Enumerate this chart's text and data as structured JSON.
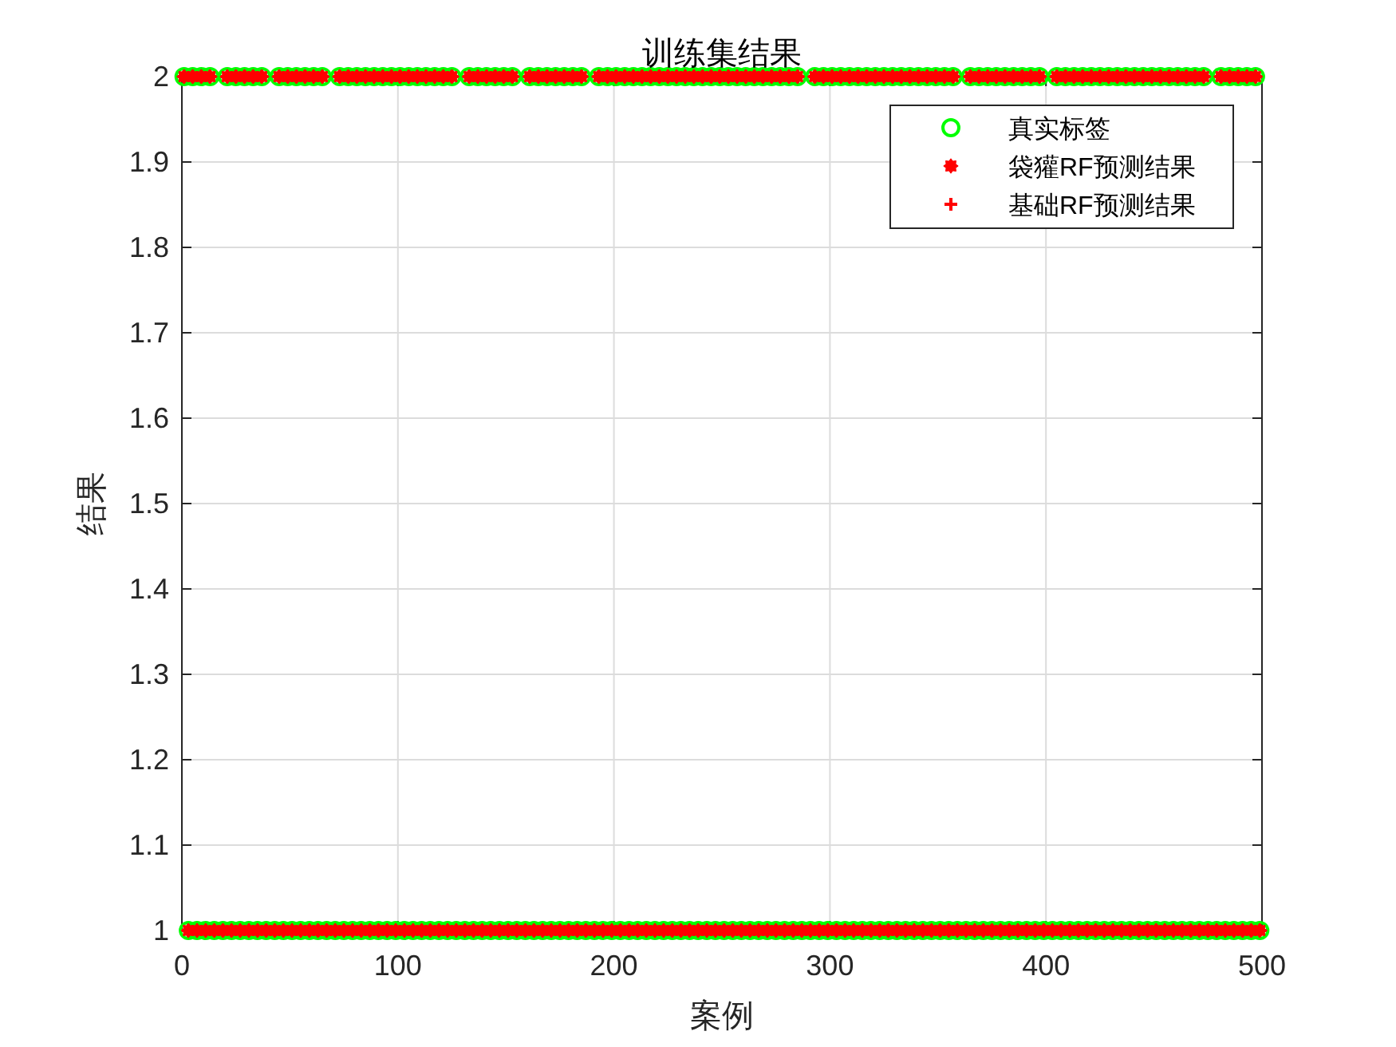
{
  "chart_data": {
    "type": "scatter",
    "title": "训练集结果",
    "xlabel": "案例",
    "ylabel": "结果",
    "xlim": [
      0,
      500
    ],
    "xticks": [
      0,
      100,
      200,
      300,
      400,
      500
    ],
    "ylim": [
      1,
      2
    ],
    "yticks": [
      1,
      1.1,
      1.2,
      1.3,
      1.4,
      1.5,
      1.6,
      1.7,
      1.8,
      1.9,
      2
    ],
    "grid": true,
    "legend": "top right",
    "x": [
      1,
      3,
      5,
      7,
      9,
      11,
      13,
      15,
      19,
      21,
      23,
      25,
      27,
      29,
      31,
      33,
      35,
      37,
      39,
      43,
      45,
      47,
      49,
      51,
      53,
      55,
      57,
      59,
      61,
      63,
      65,
      67,
      71,
      73,
      75,
      77,
      79,
      81,
      83,
      85,
      87,
      89,
      91,
      93,
      95,
      97,
      99,
      101,
      103,
      105,
      107,
      109,
      111,
      113,
      115,
      117,
      119,
      121,
      123,
      125,
      127,
      131,
      133,
      135,
      137,
      139,
      141,
      143,
      145,
      147,
      149,
      151,
      153,
      155,
      159,
      161,
      163,
      165,
      167,
      169,
      171,
      173,
      175,
      177,
      179,
      181,
      183,
      185,
      187,
      191,
      193,
      195,
      197,
      199,
      201,
      203,
      205,
      207,
      209,
      211,
      213,
      215,
      217,
      219,
      221,
      223,
      225,
      227,
      229,
      231,
      233,
      235,
      237,
      239,
      241,
      243,
      245,
      247,
      249,
      251,
      253,
      255,
      257,
      259,
      261,
      263,
      265,
      267,
      269,
      271,
      273,
      275,
      277,
      279,
      281,
      283,
      285,
      287,
      291,
      293,
      295,
      297,
      299,
      301,
      303,
      305,
      307,
      309,
      311,
      313,
      315,
      317,
      319,
      321,
      323,
      325,
      327,
      329,
      331,
      333,
      335,
      337,
      339,
      341,
      343,
      345,
      347,
      349,
      351,
      353,
      355,
      357,
      359,
      363,
      365,
      367,
      369,
      371,
      373,
      375,
      377,
      379,
      381,
      383,
      385,
      387,
      389,
      391,
      393,
      395,
      397,
      399,
      403,
      405,
      407,
      409,
      411,
      413,
      415,
      417,
      419,
      421,
      423,
      425,
      427,
      429,
      431,
      433,
      435,
      437,
      439,
      441,
      443,
      445,
      447,
      449,
      451,
      453,
      455,
      457,
      459,
      461,
      463,
      465,
      467,
      469,
      471,
      473,
      475,
      479,
      481,
      483,
      485,
      487,
      489,
      491,
      493,
      495,
      497,
      499
    ],
    "series": [
      {
        "name": "真实标签",
        "color": "#00ff00",
        "marker": "circle",
        "values": [
          2,
          1,
          2,
          1,
          2,
          1,
          2,
          1,
          1,
          2,
          1,
          2,
          1,
          2,
          1,
          2,
          1,
          2,
          1,
          1,
          2,
          1,
          2,
          1,
          2,
          1,
          2,
          1,
          2,
          1,
          2,
          1,
          1,
          2,
          1,
          2,
          1,
          2,
          1,
          2,
          1,
          2,
          1,
          2,
          1,
          2,
          1,
          2,
          1,
          2,
          1,
          2,
          1,
          2,
          1,
          2,
          1,
          2,
          1,
          2,
          1,
          1,
          2,
          1,
          2,
          1,
          2,
          1,
          2,
          1,
          2,
          1,
          2,
          1,
          1,
          2,
          1,
          2,
          1,
          2,
          1,
          2,
          1,
          2,
          1,
          2,
          1,
          2,
          1,
          1,
          2,
          1,
          2,
          1,
          2,
          1,
          2,
          1,
          2,
          1,
          2,
          1,
          2,
          1,
          2,
          1,
          2,
          1,
          2,
          1,
          2,
          1,
          2,
          1,
          2,
          1,
          2,
          1,
          2,
          1,
          2,
          1,
          2,
          1,
          2,
          1,
          2,
          1,
          2,
          1,
          2,
          1,
          2,
          1,
          2,
          1,
          2,
          1,
          1,
          2,
          1,
          2,
          1,
          2,
          1,
          2,
          1,
          2,
          1,
          2,
          1,
          2,
          1,
          2,
          1,
          2,
          1,
          2,
          1,
          2,
          1,
          2,
          1,
          2,
          1,
          2,
          1,
          2,
          1,
          2,
          1,
          2,
          1,
          1,
          2,
          1,
          2,
          1,
          2,
          1,
          2,
          1,
          2,
          1,
          2,
          1,
          2,
          1,
          2,
          1,
          2,
          1,
          1,
          2,
          1,
          2,
          1,
          2,
          1,
          2,
          1,
          2,
          1,
          2,
          1,
          2,
          1,
          2,
          1,
          2,
          1,
          2,
          1,
          2,
          1,
          2,
          1,
          2,
          1,
          2,
          1,
          2,
          1,
          2,
          1,
          2,
          1,
          2,
          1,
          1,
          2,
          1,
          2,
          1,
          2,
          1,
          2,
          1,
          2,
          1
        ]
      },
      {
        "name": "袋獾RF预测结果",
        "color": "#ff0000",
        "marker": "star",
        "values": [
          2,
          1,
          2,
          1,
          2,
          1,
          2,
          1,
          1,
          2,
          1,
          2,
          1,
          2,
          1,
          2,
          1,
          2,
          1,
          1,
          2,
          1,
          2,
          1,
          2,
          1,
          2,
          1,
          2,
          1,
          2,
          1,
          1,
          2,
          1,
          2,
          1,
          2,
          1,
          2,
          1,
          2,
          1,
          2,
          1,
          2,
          1,
          2,
          1,
          2,
          1,
          2,
          1,
          2,
          1,
          2,
          1,
          2,
          1,
          2,
          1,
          1,
          2,
          1,
          2,
          1,
          2,
          1,
          2,
          1,
          2,
          1,
          2,
          1,
          1,
          2,
          1,
          2,
          1,
          2,
          1,
          2,
          1,
          2,
          1,
          2,
          1,
          2,
          1,
          1,
          2,
          1,
          2,
          1,
          2,
          1,
          2,
          1,
          2,
          1,
          2,
          1,
          2,
          1,
          2,
          1,
          2,
          1,
          2,
          1,
          2,
          1,
          2,
          1,
          2,
          1,
          2,
          1,
          2,
          1,
          2,
          1,
          2,
          1,
          2,
          1,
          2,
          1,
          2,
          1,
          2,
          1,
          2,
          1,
          2,
          1,
          2,
          1,
          1,
          2,
          1,
          2,
          1,
          2,
          1,
          2,
          1,
          2,
          1,
          2,
          1,
          2,
          1,
          2,
          1,
          2,
          1,
          2,
          1,
          2,
          1,
          2,
          1,
          2,
          1,
          2,
          1,
          2,
          1,
          2,
          1,
          2,
          1,
          1,
          2,
          1,
          2,
          1,
          2,
          1,
          2,
          1,
          2,
          1,
          2,
          1,
          2,
          1,
          2,
          1,
          2,
          1,
          1,
          2,
          1,
          2,
          1,
          2,
          1,
          2,
          1,
          2,
          1,
          2,
          1,
          2,
          1,
          2,
          1,
          2,
          1,
          2,
          1,
          2,
          1,
          2,
          1,
          2,
          1,
          2,
          1,
          2,
          1,
          2,
          1,
          2,
          1,
          2,
          1,
          1,
          2,
          1,
          2,
          1,
          2,
          1,
          2,
          1,
          2,
          1
        ]
      },
      {
        "name": "基础RF预测结果",
        "color": "#ff0000",
        "marker": "cross",
        "values": [
          2,
          1,
          2,
          1,
          2,
          1,
          2,
          1,
          1,
          2,
          1,
          2,
          1,
          2,
          1,
          2,
          1,
          2,
          1,
          1,
          2,
          1,
          2,
          1,
          2,
          1,
          2,
          1,
          2,
          1,
          2,
          1,
          1,
          2,
          1,
          2,
          1,
          2,
          1,
          2,
          1,
          2,
          1,
          2,
          1,
          2,
          1,
          2,
          1,
          2,
          1,
          2,
          1,
          2,
          1,
          2,
          1,
          2,
          1,
          2,
          1,
          1,
          2,
          1,
          2,
          1,
          2,
          1,
          2,
          1,
          2,
          1,
          2,
          1,
          1,
          2,
          1,
          2,
          1,
          2,
          1,
          2,
          1,
          2,
          1,
          2,
          1,
          2,
          1,
          1,
          2,
          1,
          2,
          1,
          2,
          1,
          2,
          1,
          2,
          1,
          2,
          1,
          2,
          1,
          2,
          1,
          2,
          1,
          2,
          1,
          2,
          1,
          2,
          1,
          2,
          1,
          2,
          1,
          2,
          1,
          2,
          1,
          2,
          1,
          2,
          1,
          2,
          1,
          2,
          1,
          2,
          1,
          2,
          1,
          2,
          1,
          2,
          1,
          1,
          2,
          1,
          2,
          1,
          2,
          1,
          2,
          1,
          2,
          1,
          2,
          1,
          2,
          1,
          2,
          1,
          2,
          1,
          2,
          1,
          2,
          1,
          2,
          1,
          2,
          1,
          2,
          1,
          2,
          1,
          2,
          1,
          2,
          1,
          1,
          2,
          1,
          2,
          1,
          2,
          1,
          2,
          1,
          2,
          1,
          2,
          1,
          2,
          1,
          2,
          1,
          2,
          1,
          1,
          2,
          1,
          2,
          1,
          2,
          1,
          2,
          1,
          2,
          1,
          2,
          1,
          2,
          1,
          2,
          1,
          2,
          1,
          2,
          1,
          2,
          1,
          2,
          1,
          2,
          1,
          2,
          1,
          2,
          1,
          2,
          1,
          2,
          1,
          2,
          1,
          1,
          2,
          1,
          2,
          1,
          2,
          1,
          2,
          1,
          2,
          1
        ]
      }
    ]
  }
}
